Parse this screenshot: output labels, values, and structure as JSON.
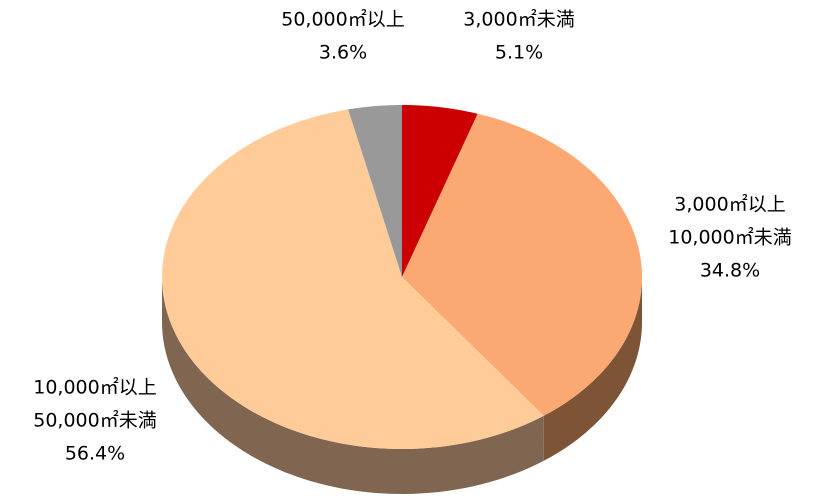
{
  "chart_data": {
    "type": "pie3d",
    "categories": [
      [
        "3,000㎡未満"
      ],
      [
        "3,000㎡以上",
        "10,000㎡未満"
      ],
      [
        "10,000㎡以上",
        "50,000㎡未満"
      ],
      [
        "50,000㎡以上"
      ]
    ],
    "values": [
      5.1,
      34.8,
      56.4,
      3.6
    ],
    "value_labels": [
      "5.1%",
      "34.8%",
      "56.4%",
      "3.6%"
    ],
    "colors": [
      "#cc0000",
      "#fca872",
      "#ffcc99",
      "#999999"
    ],
    "side_colors": [
      "#7a0000",
      "#7d5436",
      "#806650",
      "#5c5c5c"
    ]
  }
}
